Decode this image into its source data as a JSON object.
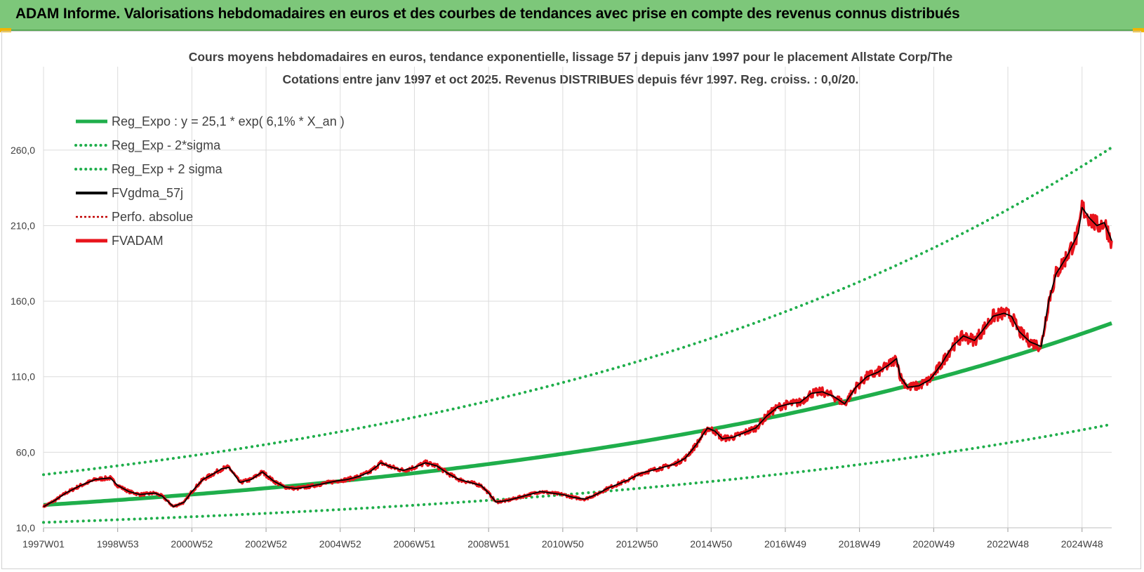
{
  "banner": {
    "title": "ADAM Informe. Valorisations hebdomadaires en euros et des courbes de tendances avec prise en compte des revenus connus distribués"
  },
  "colors": {
    "banner_bg": "#7dc77a",
    "trend_green": "#1fae4b",
    "price_red": "#e8141c",
    "smooth_black": "#000000",
    "grid": "#dcdcdc"
  },
  "chart_data": {
    "type": "line",
    "title": "Cours moyens hebdomadaires en euros, tendance exponentielle, lissage 57 j depuis janv 1997 pour le placement Allstate Corp/The",
    "subtitle": "Cotations entre janv 1997 et oct 2025. Revenus DISTRIBUES depuis févr 1997. Reg. croiss. : 0,0/20.",
    "xlabel": "",
    "ylabel": "",
    "xlim": [
      1997.0,
      2025.8
    ],
    "ylim": [
      10,
      285
    ],
    "y_ticks": [
      "10,0",
      "60,0",
      "110,0",
      "160,0",
      "210,0",
      "260,0"
    ],
    "y_tick_values": [
      10,
      60,
      110,
      160,
      210,
      260
    ],
    "x_ticks": [
      "1997W01",
      "1998W53",
      "2000W52",
      "2002W52",
      "2004W52",
      "2006W51",
      "2008W51",
      "2010W50",
      "2012W50",
      "2014W50",
      "2016W49",
      "2018W49",
      "2020W49",
      "2022W48",
      "2024W48"
    ],
    "x_tick_values": [
      1997.0,
      1999.0,
      2001.0,
      2003.0,
      2005.0,
      2007.0,
      2009.0,
      2011.0,
      2013.0,
      2015.0,
      2017.0,
      2019.0,
      2021.0,
      2023.0,
      2025.0
    ],
    "grid": true,
    "legend_position": "top-left",
    "regression": {
      "a": 25.1,
      "rate": 0.061,
      "lower_factor": 0.54,
      "upper_factor": 1.8
    },
    "series": [
      {
        "name": "Reg_Expo : y = 25,1 * exp( 6,1% *  X_an )",
        "style": "solid-thick",
        "color": "#1fae4b",
        "kind": "trend"
      },
      {
        "name": "Reg_Exp - 2*sigma",
        "style": "dotted",
        "color": "#1fae4b",
        "kind": "lower"
      },
      {
        "name": "Reg_Exp + 2 sigma",
        "style": "dotted",
        "color": "#1fae4b",
        "kind": "upper"
      },
      {
        "name": "FVgdma_57j",
        "style": "solid",
        "color": "#000000",
        "kind": "smooth"
      },
      {
        "name": "Perfo. absolue",
        "style": "dotted-thin",
        "color": "#c00000",
        "kind": "perfo"
      },
      {
        "name": "FVADAM",
        "style": "solid-thick",
        "color": "#e8141c",
        "kind": "price"
      }
    ],
    "price_points": {
      "x": [
        1997.0,
        1997.3,
        1997.6,
        1998.0,
        1998.4,
        1998.8,
        1999.0,
        1999.3,
        1999.6,
        2000.0,
        2000.2,
        2000.5,
        2000.8,
        2001.0,
        2001.3,
        2001.6,
        2001.8,
        2002.0,
        2002.3,
        2002.6,
        2002.9,
        2003.2,
        2003.5,
        2003.8,
        2004.1,
        2004.5,
        2004.9,
        2005.2,
        2005.5,
        2005.8,
        2006.1,
        2006.4,
        2006.7,
        2007.0,
        2007.3,
        2007.6,
        2007.9,
        2008.2,
        2008.5,
        2008.8,
        2009.0,
        2009.2,
        2009.5,
        2009.8,
        2010.1,
        2010.4,
        2010.7,
        2011.0,
        2011.3,
        2011.6,
        2011.9,
        2012.2,
        2012.5,
        2012.8,
        2013.1,
        2013.4,
        2013.7,
        2014.0,
        2014.3,
        2014.6,
        2014.9,
        2015.1,
        2015.3,
        2015.6,
        2015.9,
        2016.2,
        2016.5,
        2016.8,
        2017.1,
        2017.4,
        2017.7,
        2018.0,
        2018.3,
        2018.6,
        2018.9,
        2019.2,
        2019.5,
        2019.8,
        2020.0,
        2020.1,
        2020.3,
        2020.6,
        2020.9,
        2021.2,
        2021.5,
        2021.8,
        2022.1,
        2022.3,
        2022.6,
        2022.9,
        2023.1,
        2023.3,
        2023.6,
        2023.9,
        2024.1,
        2024.3,
        2024.6,
        2024.9,
        2025.0,
        2025.2,
        2025.4,
        2025.6,
        2025.8
      ],
      "y": [
        24,
        28,
        33,
        38,
        42,
        43,
        38,
        34,
        32,
        33,
        31,
        24,
        27,
        34,
        42,
        46,
        49,
        50,
        40,
        42,
        47,
        41,
        37,
        36,
        37,
        39,
        41,
        42,
        44,
        47,
        53,
        50,
        48,
        50,
        53,
        51,
        46,
        42,
        40,
        38,
        33,
        27,
        28,
        30,
        32,
        34,
        33,
        32,
        30,
        29,
        32,
        36,
        39,
        42,
        46,
        48,
        50,
        52,
        56,
        65,
        76,
        74,
        69,
        70,
        73,
        76,
        84,
        90,
        92,
        93,
        99,
        100,
        97,
        92,
        103,
        110,
        113,
        118,
        122,
        110,
        103,
        104,
        108,
        118,
        130,
        137,
        134,
        140,
        150,
        152,
        150,
        140,
        133,
        130,
        160,
        178,
        190,
        205,
        222,
        215,
        210,
        212,
        200
      ]
    }
  }
}
